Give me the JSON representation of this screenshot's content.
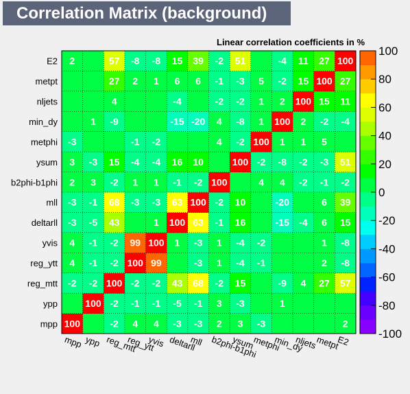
{
  "title": "Correlation Matrix (background)",
  "subtitle": "Linear correlation coefficients in %",
  "chart_data": {
    "type": "heatmap",
    "title": "Correlation Matrix (background)",
    "subtitle": "Linear correlation coefficients in %",
    "variables": [
      "mpp",
      "ypp",
      "reg_mtt",
      "reg_ytt",
      "yvis",
      "deltarll",
      "mll",
      "b2phi-b1phi",
      "ysum",
      "metphi",
      "min_dy",
      "nljets",
      "metpt",
      "E2"
    ],
    "matrix": [
      [
        100,
        0,
        -2,
        4,
        4,
        -3,
        -3,
        2,
        3,
        -3,
        0,
        0,
        0,
        2
      ],
      [
        0,
        100,
        -2,
        -1,
        -1,
        -5,
        -1,
        3,
        -3,
        0,
        1,
        0,
        0,
        0
      ],
      [
        -2,
        -2,
        100,
        -2,
        -2,
        43,
        68,
        -2,
        15,
        0,
        -9,
        4,
        27,
        57
      ],
      [
        4,
        -1,
        -2,
        100,
        99,
        0,
        -3,
        1,
        -4,
        -1,
        0,
        0,
        2,
        -8
      ],
      [
        4,
        -1,
        -2,
        99,
        100,
        1,
        -3,
        1,
        -4,
        -2,
        0,
        0,
        1,
        -8
      ],
      [
        -3,
        -5,
        43,
        0,
        1,
        100,
        63,
        -1,
        16,
        0,
        -15,
        -4,
        6,
        15
      ],
      [
        -3,
        -1,
        68,
        -3,
        -3,
        63,
        100,
        -2,
        10,
        0,
        -20,
        0,
        6,
        39
      ],
      [
        2,
        3,
        -2,
        1,
        1,
        -1,
        -2,
        100,
        0,
        4,
        4,
        -2,
        -1,
        -2
      ],
      [
        3,
        -3,
        15,
        -4,
        -4,
        16,
        10,
        0,
        100,
        -2,
        -8,
        -2,
        -3,
        51
      ],
      [
        -3,
        0,
        0,
        -1,
        -2,
        0,
        0,
        4,
        -2,
        100,
        1,
        1,
        5,
        0
      ],
      [
        0,
        1,
        -9,
        0,
        0,
        -15,
        -20,
        4,
        -8,
        1,
        100,
        2,
        -2,
        -4
      ],
      [
        0,
        0,
        4,
        0,
        0,
        -4,
        0,
        -2,
        -2,
        1,
        2,
        100,
        15,
        11
      ],
      [
        0,
        0,
        27,
        2,
        1,
        6,
        6,
        -1,
        -3,
        5,
        -2,
        15,
        100,
        27
      ],
      [
        2,
        0,
        57,
        -8,
        -8,
        15,
        39,
        -2,
        51,
        0,
        -4,
        11,
        27,
        100
      ]
    ],
    "colorbar": {
      "min": -100,
      "max": 100,
      "ticks": [
        -100,
        -80,
        -60,
        -40,
        -20,
        0,
        20,
        40,
        60,
        80,
        100
      ]
    }
  }
}
